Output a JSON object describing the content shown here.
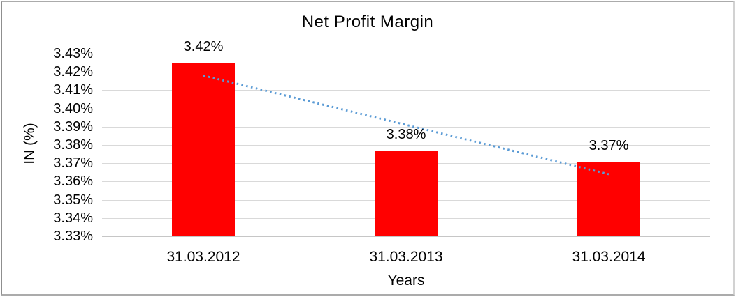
{
  "chart_data": {
    "type": "bar",
    "title": "Net Profit Margin",
    "categories": [
      "31.03.2012",
      "31.03.2013",
      "31.03.2014"
    ],
    "values": [
      3.425,
      3.377,
      3.371
    ],
    "bar_labels": [
      "3.42%",
      "3.38%",
      "3.37%"
    ],
    "xlabel": "Years",
    "ylabel": "IN (%)",
    "ylim": [
      3.33,
      3.43
    ],
    "y_tick_step": 0.01,
    "y_tick_labels": [
      "3.43%",
      "3.42%",
      "3.41%",
      "3.40%",
      "3.39%",
      "3.38%",
      "3.37%",
      "3.36%",
      "3.35%",
      "3.34%",
      "3.33%"
    ],
    "bar_color": "#FF0000",
    "gridline_color": "#D9D9D9",
    "axis_line_color": "#C6C6C6",
    "text_color": "#000000",
    "trendline": {
      "type": "linear",
      "style": "dotted",
      "color": "#5B9BD5",
      "start_value": 3.418,
      "end_value": 3.364
    },
    "legend": "none",
    "grid": "horizontal"
  }
}
